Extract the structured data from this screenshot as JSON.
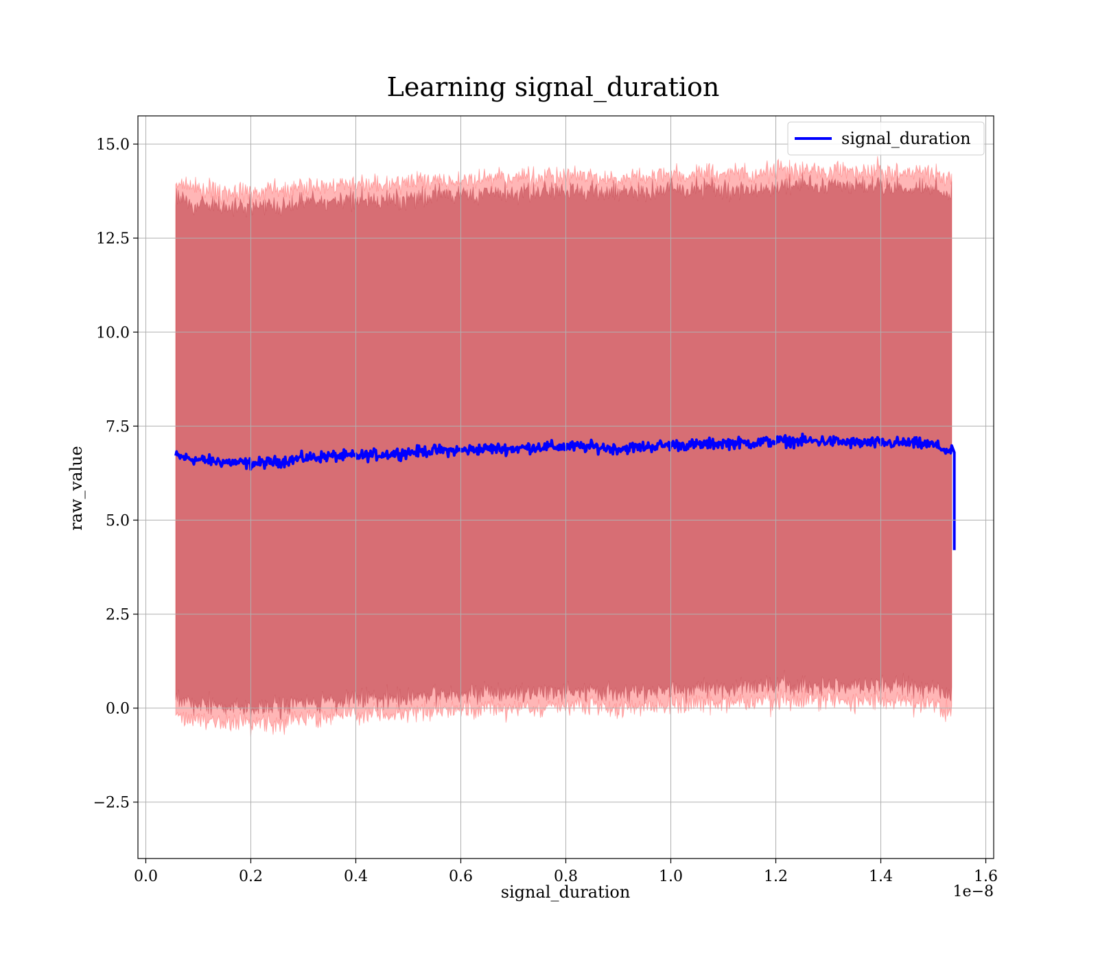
{
  "chart_data": {
    "type": "line",
    "title": "Learning signal_duration",
    "xlabel": "signal_duration",
    "ylabel": "raw_value",
    "x_scale_label": "1e−8",
    "xlim": [
      -0.015,
      1.615
    ],
    "ylim": [
      -4.0,
      15.75
    ],
    "x_ticks": [
      0.0,
      0.2,
      0.4,
      0.6,
      0.8,
      1.0,
      1.2,
      1.4,
      1.6
    ],
    "x_tick_labels": [
      "0.0",
      "0.2",
      "0.4",
      "0.6",
      "0.8",
      "1.0",
      "1.2",
      "1.4",
      "1.6"
    ],
    "y_ticks": [
      -2.5,
      0.0,
      2.5,
      5.0,
      7.5,
      10.0,
      12.5,
      15.0
    ],
    "y_tick_labels": [
      "−2.5",
      "0.0",
      "2.5",
      "5.0",
      "7.5",
      "10.0",
      "12.5",
      "15.0"
    ],
    "grid": true,
    "legend_position": "top-right",
    "series": [
      {
        "name": "signal_duration",
        "color": "#0000ff",
        "x": [
          0.057,
          0.1,
          0.15,
          0.2,
          0.25,
          0.3,
          0.35,
          0.4,
          0.45,
          0.5,
          0.55,
          0.6,
          0.65,
          0.7,
          0.75,
          0.8,
          0.85,
          0.9,
          0.95,
          1.0,
          1.05,
          1.1,
          1.15,
          1.2,
          1.25,
          1.3,
          1.35,
          1.4,
          1.45,
          1.5,
          1.535,
          1.54
        ],
        "y": [
          6.7,
          6.6,
          6.55,
          6.5,
          6.55,
          6.65,
          6.7,
          6.7,
          6.75,
          6.8,
          6.85,
          6.85,
          6.9,
          6.9,
          6.95,
          6.95,
          6.95,
          6.9,
          6.95,
          7.0,
          7.0,
          7.05,
          7.05,
          7.1,
          7.1,
          7.1,
          7.05,
          7.05,
          7.05,
          7.0,
          6.8,
          4.2
        ],
        "noise": 0.22
      }
    ],
    "bands": [
      {
        "color": "#8b2e3e",
        "upper": 13.5,
        "lower": 0.2,
        "note": ""
      },
      {
        "color": "#ff4040",
        "upper": 13.9,
        "lower": -0.2
      }
    ]
  }
}
